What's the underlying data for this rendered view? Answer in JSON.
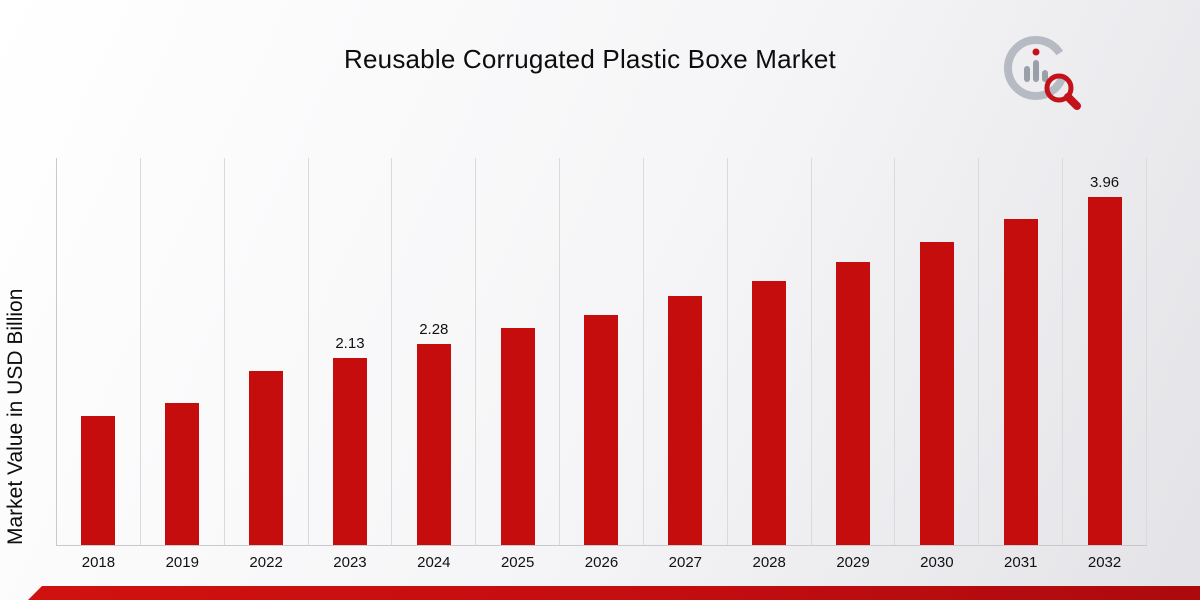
{
  "header": {
    "title": "Reusable Corrugated Plastic Boxe Market"
  },
  "axis": {
    "ylabel": "Market Value in USD Billion"
  },
  "brand": {
    "logo_icon": "bar-chart-magnifier-logo"
  },
  "colors": {
    "bar": "#c60d0d",
    "accent_strip": "#c30d10",
    "grid": "#dadadd",
    "background_start": "#ffffff",
    "background_end": "#e3e3e7"
  },
  "chart_data": {
    "type": "bar",
    "title": "Reusable Corrugated Plastic Boxe Market",
    "xlabel": "",
    "ylabel": "Market Value in USD Billion",
    "categories": [
      "2018",
      "2019",
      "2022",
      "2023",
      "2024",
      "2025",
      "2026",
      "2027",
      "2028",
      "2029",
      "2030",
      "2031",
      "2032"
    ],
    "values": [
      1.47,
      1.62,
      1.98,
      2.13,
      2.28,
      2.47,
      2.62,
      2.83,
      3.0,
      3.22,
      3.45,
      3.71,
      3.96
    ],
    "data_labels": [
      "",
      "",
      "",
      "2.13",
      "2.28",
      "",
      "",
      "",
      "",
      "",
      "",
      "",
      "3.96"
    ],
    "ylim": [
      0,
      4.4
    ],
    "grid": "vertical-category-separators",
    "legend": "none",
    "bar_color": "#c60d0d"
  }
}
